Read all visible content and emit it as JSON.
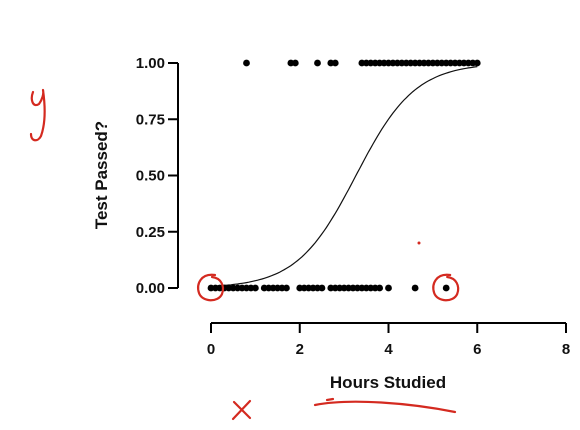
{
  "chart_data": {
    "type": "scatter",
    "title": "",
    "xlabel": "Hours Studied",
    "ylabel": "Test Passed?",
    "xlim": [
      0,
      8
    ],
    "ylim": [
      0,
      1
    ],
    "x_ticks": [
      "0",
      "2",
      "4",
      "6",
      "8"
    ],
    "y_ticks": [
      "0.00",
      "0.25",
      "0.50",
      "0.75",
      "1.00"
    ],
    "grid": false,
    "legend": "none",
    "series": [
      {
        "kind": "points",
        "color": "#000000",
        "points": [
          {
            "x": 0.0,
            "y": 0
          },
          {
            "x": 0.1,
            "y": 0
          },
          {
            "x": 0.2,
            "y": 0
          },
          {
            "x": 0.3,
            "y": 0
          },
          {
            "x": 0.4,
            "y": 0
          },
          {
            "x": 0.5,
            "y": 0
          },
          {
            "x": 0.6,
            "y": 0
          },
          {
            "x": 0.7,
            "y": 0
          },
          {
            "x": 0.8,
            "y": 0
          },
          {
            "x": 0.9,
            "y": 0
          },
          {
            "x": 1.0,
            "y": 0
          },
          {
            "x": 1.2,
            "y": 0
          },
          {
            "x": 1.3,
            "y": 0
          },
          {
            "x": 1.4,
            "y": 0
          },
          {
            "x": 1.5,
            "y": 0
          },
          {
            "x": 1.6,
            "y": 0
          },
          {
            "x": 1.7,
            "y": 0
          },
          {
            "x": 2.0,
            "y": 0
          },
          {
            "x": 2.1,
            "y": 0
          },
          {
            "x": 2.2,
            "y": 0
          },
          {
            "x": 2.3,
            "y": 0
          },
          {
            "x": 2.4,
            "y": 0
          },
          {
            "x": 2.5,
            "y": 0
          },
          {
            "x": 2.7,
            "y": 0
          },
          {
            "x": 2.8,
            "y": 0
          },
          {
            "x": 2.9,
            "y": 0
          },
          {
            "x": 3.0,
            "y": 0
          },
          {
            "x": 3.1,
            "y": 0
          },
          {
            "x": 3.2,
            "y": 0
          },
          {
            "x": 3.3,
            "y": 0
          },
          {
            "x": 3.4,
            "y": 0
          },
          {
            "x": 3.5,
            "y": 0
          },
          {
            "x": 3.6,
            "y": 0
          },
          {
            "x": 3.7,
            "y": 0
          },
          {
            "x": 3.8,
            "y": 0
          },
          {
            "x": 4.0,
            "y": 0
          },
          {
            "x": 4.6,
            "y": 0
          },
          {
            "x": 5.3,
            "y": 0
          },
          {
            "x": 0.8,
            "y": 1
          },
          {
            "x": 1.8,
            "y": 1
          },
          {
            "x": 1.9,
            "y": 1
          },
          {
            "x": 2.4,
            "y": 1
          },
          {
            "x": 2.7,
            "y": 1
          },
          {
            "x": 2.8,
            "y": 1
          },
          {
            "x": 3.4,
            "y": 1
          },
          {
            "x": 3.5,
            "y": 1
          },
          {
            "x": 3.6,
            "y": 1
          },
          {
            "x": 3.7,
            "y": 1
          },
          {
            "x": 3.8,
            "y": 1
          },
          {
            "x": 3.9,
            "y": 1
          },
          {
            "x": 4.0,
            "y": 1
          },
          {
            "x": 4.1,
            "y": 1
          },
          {
            "x": 4.2,
            "y": 1
          },
          {
            "x": 4.3,
            "y": 1
          },
          {
            "x": 4.4,
            "y": 1
          },
          {
            "x": 4.5,
            "y": 1
          },
          {
            "x": 4.6,
            "y": 1
          },
          {
            "x": 4.7,
            "y": 1
          },
          {
            "x": 4.8,
            "y": 1
          },
          {
            "x": 4.9,
            "y": 1
          },
          {
            "x": 5.0,
            "y": 1
          },
          {
            "x": 5.1,
            "y": 1
          },
          {
            "x": 5.2,
            "y": 1
          },
          {
            "x": 5.3,
            "y": 1
          },
          {
            "x": 5.4,
            "y": 1
          },
          {
            "x": 5.5,
            "y": 1
          },
          {
            "x": 5.6,
            "y": 1
          },
          {
            "x": 5.7,
            "y": 1
          },
          {
            "x": 5.8,
            "y": 1
          },
          {
            "x": 5.9,
            "y": 1
          },
          {
            "x": 6.0,
            "y": 1
          }
        ]
      },
      {
        "kind": "logistic-curve",
        "color": "#111111",
        "x_range": [
          0,
          6
        ],
        "intercept": -4.9,
        "slope": 1.5
      }
    ],
    "annotations": {
      "color": "#d42a20",
      "y_axis_letter": "y",
      "x_axis_letter": "x",
      "circled_points": [
        {
          "x": 0.0,
          "y": 0
        },
        {
          "x": 5.3,
          "y": 0
        }
      ]
    }
  }
}
